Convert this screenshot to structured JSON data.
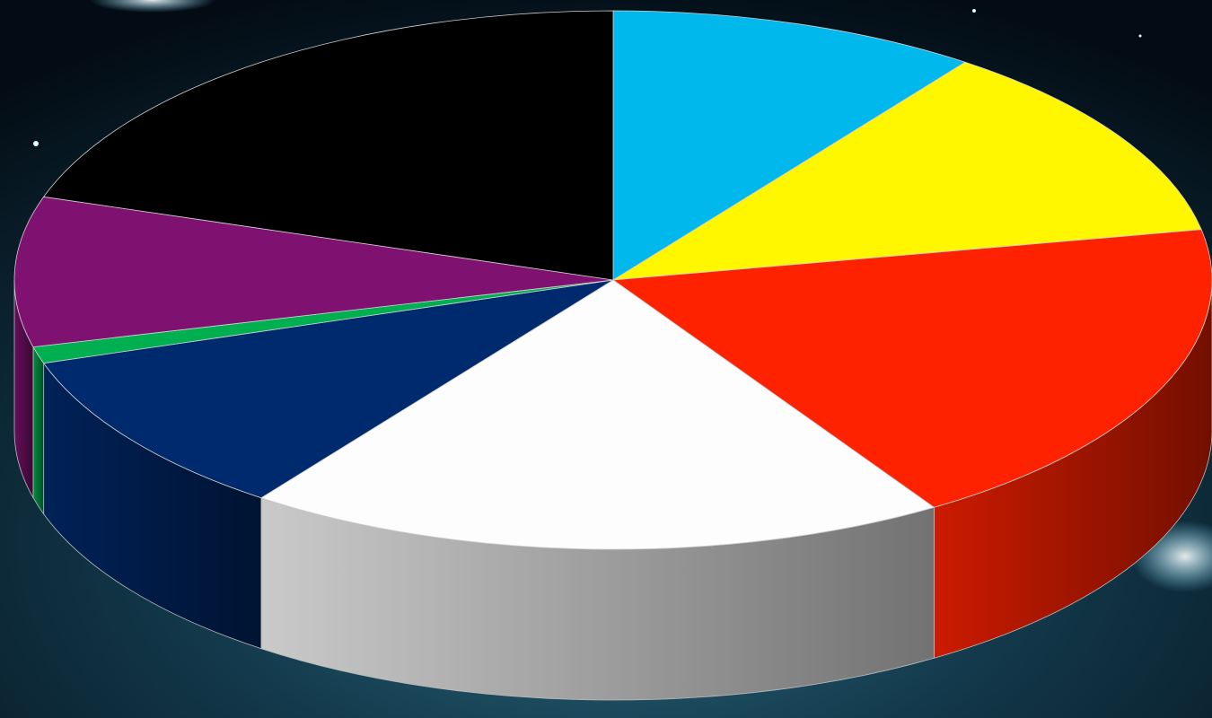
{
  "chart_data": {
    "type": "pie3d",
    "values": [
      10,
      12,
      19,
      19,
      10,
      1,
      9,
      20
    ],
    "colors": [
      "#00b8ec",
      "#fff700",
      "#ff2200",
      "#fdfdfd",
      "#002a6e",
      "#00b050",
      "#7f1170",
      "#000000"
    ]
  }
}
